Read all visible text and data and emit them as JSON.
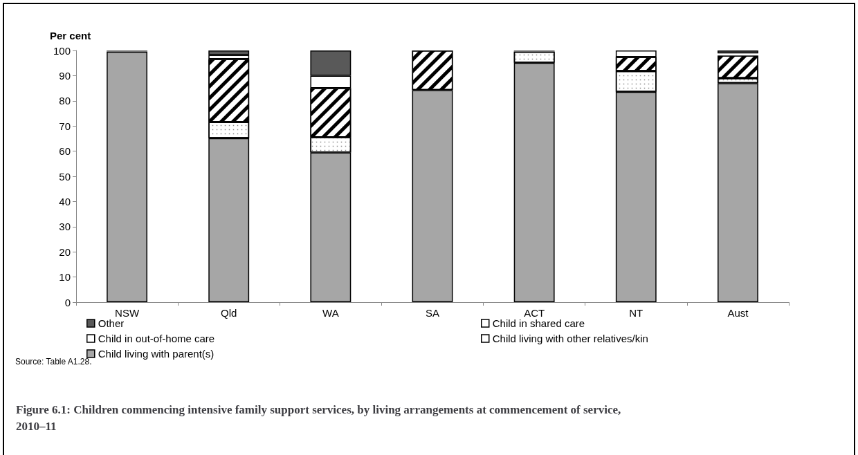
{
  "chart_data": {
    "type": "bar",
    "stacked": true,
    "title": "Figure 6.1: Children commencing intensive family support services, by living arrangements at commencement of service, 2010–11",
    "ylabel": "Per cent",
    "categories": [
      "NSW",
      "Qld",
      "WA",
      "SA",
      "ACT",
      "NT",
      "Aust"
    ],
    "series": [
      {
        "name": "Child living with parent(s)",
        "color": "#a6a6a6",
        "values": [
          99.5,
          65.2,
          59.5,
          84.3,
          95.1,
          83.6,
          87
        ]
      },
      {
        "name": "Child living with other relatives/kin",
        "color": "#ffffff",
        "values": [
          0,
          6.4,
          6,
          0,
          4.4,
          8.2,
          2
        ]
      },
      {
        "name": "Child in out-of-home care",
        "color": "#ffffff",
        "values": [
          0,
          25,
          19.5,
          15.7,
          0,
          5.6,
          9
        ]
      },
      {
        "name": "Child in shared care",
        "color": "#ffffff",
        "values": [
          0,
          1.6,
          5,
          0,
          0,
          2.6,
          0.8
        ]
      },
      {
        "name": "Other",
        "color": "#595959",
        "values": [
          0.5,
          1.8,
          10,
          0,
          0.5,
          0,
          1.2
        ]
      }
    ],
    "ylim": [
      0,
      100
    ],
    "yticks": [
      0,
      10,
      20,
      30,
      40,
      50,
      60,
      70,
      80,
      90,
      100
    ],
    "grid": false,
    "legend": "bottom",
    "annotations": [
      "Source: Table A1.28."
    ]
  }
}
